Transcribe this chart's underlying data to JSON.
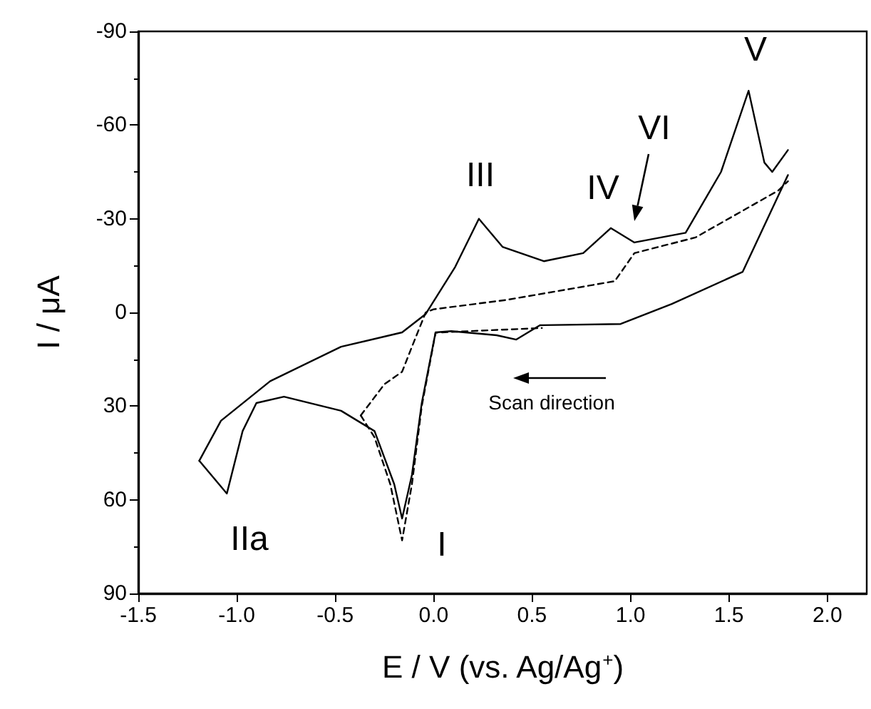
{
  "chart_data": {
    "type": "line",
    "xlabel": "E / V (vs. Ag/Ag$^{+}$)",
    "ylabel": "I / μA",
    "xlim": [
      -1.5,
      2.2
    ],
    "xticks": [
      -1.5,
      {
        "value": -1,
        "label": "-1.0"
      },
      -0.5,
      {
        "value": 0,
        "label": "0.0"
      },
      0.5,
      {
        "value": 1,
        "label": "1.0"
      },
      1.5,
      {
        "value": 2,
        "label": "2.0"
      }
    ],
    "ylim": [
      90,
      -90
    ],
    "yticks": [
      -90,
      -60,
      -30,
      0,
      30,
      60,
      90
    ],
    "grid": false,
    "marker": "none",
    "series": [
      {
        "color": "#000000",
        "line_style": "solid",
        "x": [
          -1.19,
          -1.08,
          -0.83,
          -0.47,
          -0.16,
          -0.04,
          0.11,
          0.23,
          0.35,
          0.56,
          0.76,
          0.9,
          1.02,
          1.28,
          1.46,
          1.6,
          1.68,
          1.72,
          1.8
        ],
        "values": [
          47.5,
          34.7,
          22,
          11,
          6.4,
          0.5,
          -14.6,
          -30,
          -21,
          -16.4,
          -19,
          -27,
          -22.4,
          -25.5,
          -45,
          -71,
          -48,
          -45,
          -52
        ]
      },
      {
        "color": "#000000",
        "line_style": "solid",
        "x": [
          -1.19,
          -1.05,
          -0.97,
          -0.9,
          -0.76,
          -0.47,
          -0.3,
          -0.2,
          -0.16,
          -0.11,
          -0.06,
          0.01,
          0.09,
          0.32,
          0.42,
          0.54,
          0.95,
          1.21,
          1.57,
          1.8
        ],
        "values": [
          47.5,
          58,
          38,
          29,
          27,
          31.5,
          38,
          55,
          66,
          52,
          29,
          6.4,
          6,
          7.3,
          8.7,
          4.1,
          3.7,
          -2.7,
          -13,
          -44
        ]
      },
      {
        "color": "#000000",
        "line_style": "dashed",
        "x": [
          -0.37,
          -0.3,
          -0.22,
          -0.16,
          -0.11,
          -0.06,
          0.01,
          0.18,
          0.55
        ],
        "values": [
          33,
          40,
          55,
          73,
          55,
          30,
          6.5,
          6,
          5
        ]
      },
      {
        "color": "#000000",
        "line_style": "dashed",
        "x": [
          -0.37,
          -0.25,
          -0.16,
          -0.11,
          -0.04,
          0,
          0.37,
          0.92,
          1.02,
          1.33,
          1.75,
          1.8
        ],
        "values": [
          33,
          23,
          19,
          11,
          0,
          -1,
          -4,
          -10,
          -19,
          -24,
          -39,
          -42
        ]
      }
    ],
    "annotations": [
      "III",
      "IV",
      "VI",
      "V",
      "IIa",
      "I",
      "Scan direction"
    ]
  }
}
